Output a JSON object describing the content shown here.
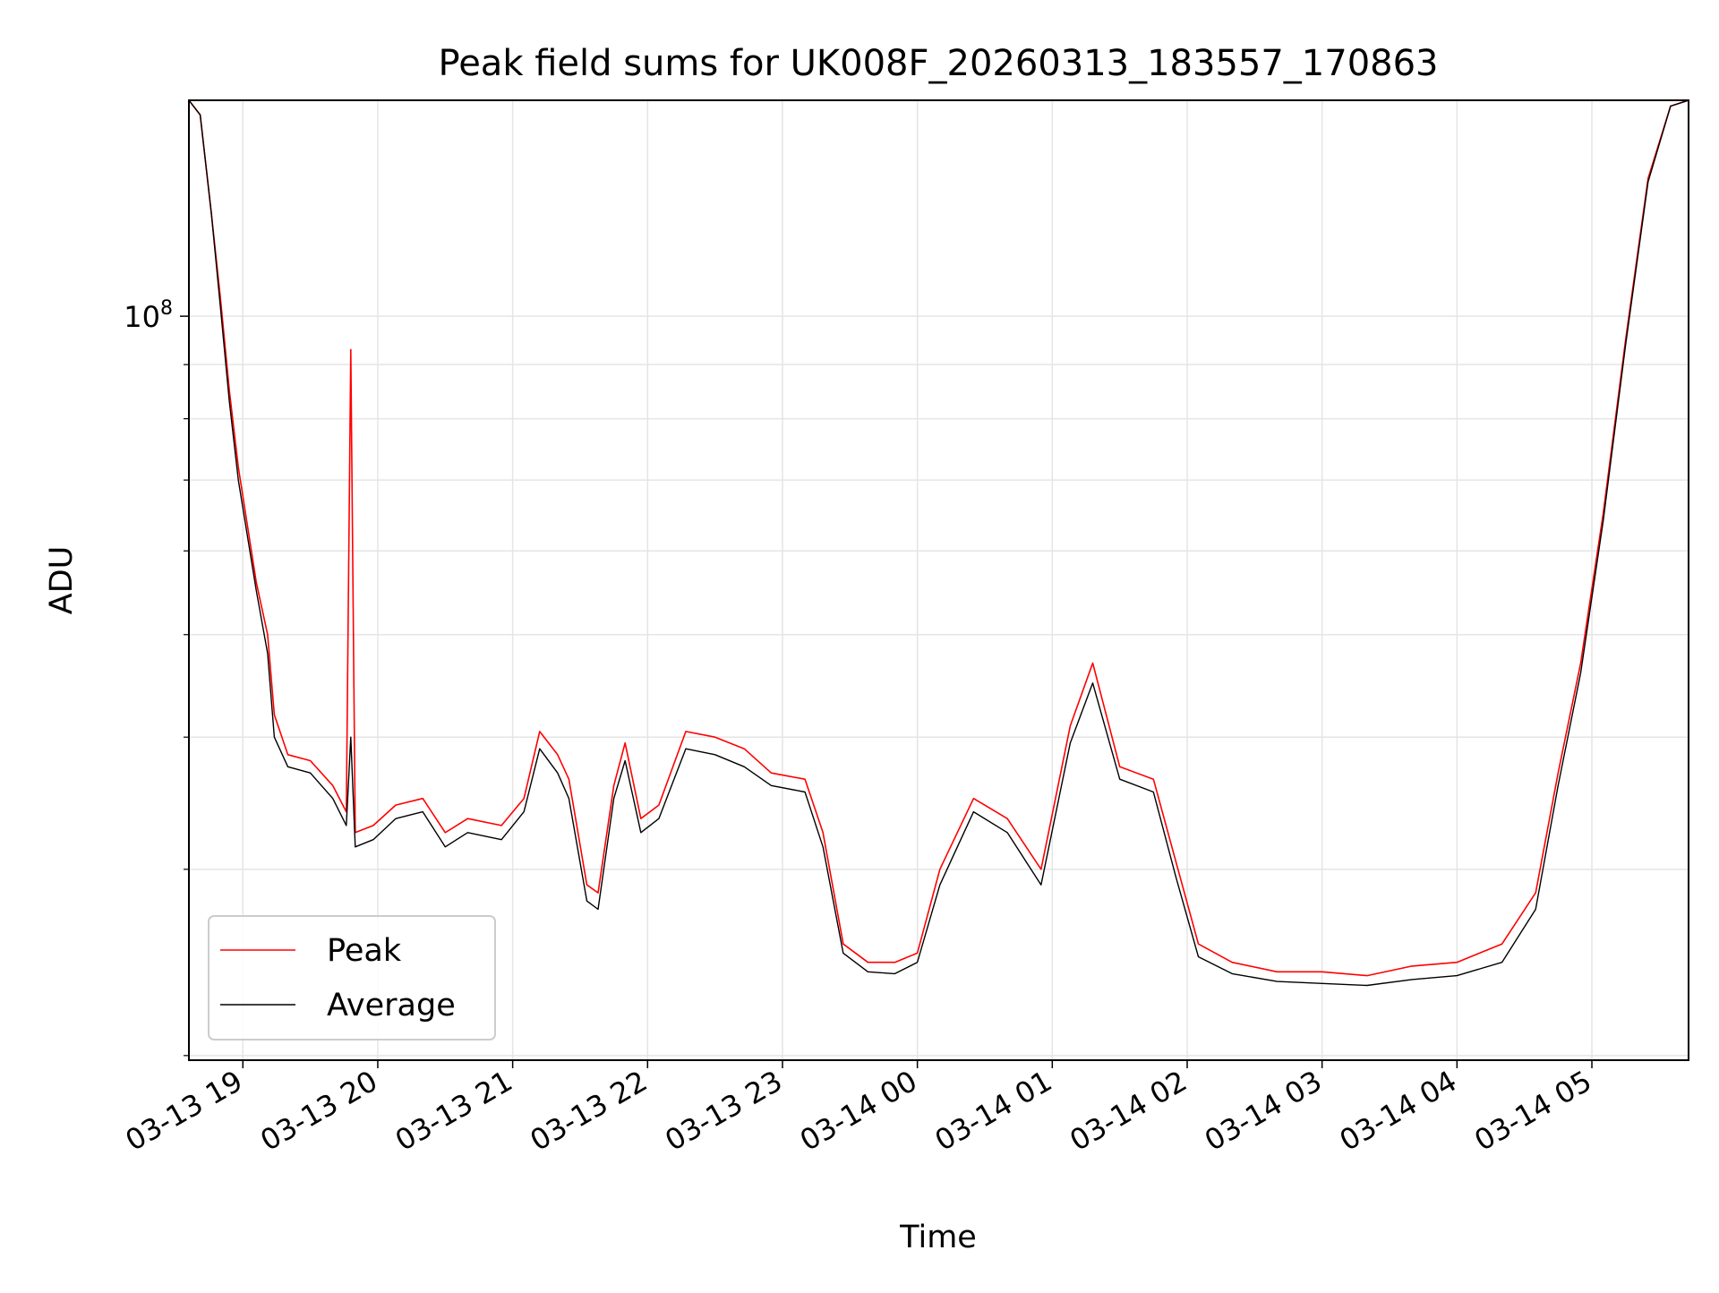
{
  "chart_data": {
    "type": "line",
    "title": "Peak field sums for UK008F_20260313_183557_170863",
    "xlabel": "Time",
    "ylabel": "ADU",
    "y_scale": "log",
    "ylim": [
      19800000,
      160000000
    ],
    "xlim": [
      "2026-03-13 18:36",
      "2026-03-14 05:43"
    ],
    "grid": true,
    "legend_position": "lower-left",
    "x_tick_labels": [
      "03-13 19",
      "03-13 20",
      "03-13 21",
      "03-13 22",
      "03-13 23",
      "03-14 00",
      "03-14 01",
      "03-14 02",
      "03-14 03",
      "03-14 04",
      "03-14 05"
    ],
    "y_tick_labels": [
      {
        "base": "10",
        "exp": "8"
      }
    ],
    "series": [
      {
        "name": "Peak",
        "color": "#ff0000",
        "points": [
          [
            "2026-03-13 18:36",
            160000000
          ],
          [
            "2026-03-13 18:41",
            155000000
          ],
          [
            "2026-03-13 18:46",
            125000000
          ],
          [
            "2026-03-13 18:50",
            104000000
          ],
          [
            "2026-03-13 18:54",
            85000000
          ],
          [
            "2026-03-13 18:58",
            72000000
          ],
          [
            "2026-03-13 19:06",
            56000000
          ],
          [
            "2026-03-13 19:11",
            50000000
          ],
          [
            "2026-03-13 19:14",
            42000000
          ],
          [
            "2026-03-13 19:20",
            38500000
          ],
          [
            "2026-03-13 19:30",
            38000000
          ],
          [
            "2026-03-13 19:40",
            36000000
          ],
          [
            "2026-03-13 19:46",
            34000000
          ],
          [
            "2026-03-13 19:48",
            93000000
          ],
          [
            "2026-03-13 19:50",
            32500000
          ],
          [
            "2026-03-13 19:58",
            33000000
          ],
          [
            "2026-03-13 20:08",
            34500000
          ],
          [
            "2026-03-13 20:20",
            35000000
          ],
          [
            "2026-03-13 20:30",
            32500000
          ],
          [
            "2026-03-13 20:40",
            33500000
          ],
          [
            "2026-03-13 20:55",
            33000000
          ],
          [
            "2026-03-13 21:05",
            35000000
          ],
          [
            "2026-03-13 21:12",
            40500000
          ],
          [
            "2026-03-13 21:20",
            38500000
          ],
          [
            "2026-03-13 21:25",
            36500000
          ],
          [
            "2026-03-13 21:33",
            29000000
          ],
          [
            "2026-03-13 21:38",
            28500000
          ],
          [
            "2026-03-13 21:45",
            36000000
          ],
          [
            "2026-03-13 21:50",
            39500000
          ],
          [
            "2026-03-13 21:57",
            33500000
          ],
          [
            "2026-03-13 22:05",
            34500000
          ],
          [
            "2026-03-13 22:17",
            40500000
          ],
          [
            "2026-03-13 22:30",
            40000000
          ],
          [
            "2026-03-13 22:43",
            39000000
          ],
          [
            "2026-03-13 22:55",
            37000000
          ],
          [
            "2026-03-13 23:10",
            36500000
          ],
          [
            "2026-03-13 23:18",
            32500000
          ],
          [
            "2026-03-13 23:27",
            25500000
          ],
          [
            "2026-03-13 23:38",
            24500000
          ],
          [
            "2026-03-13 23:50",
            24500000
          ],
          [
            "2026-03-14 00:00",
            25000000
          ],
          [
            "2026-03-14 00:10",
            30000000
          ],
          [
            "2026-03-14 00:25",
            35000000
          ],
          [
            "2026-03-14 00:40",
            33500000
          ],
          [
            "2026-03-14 00:55",
            30000000
          ],
          [
            "2026-03-14 01:08",
            41000000
          ],
          [
            "2026-03-14 01:18",
            47000000
          ],
          [
            "2026-03-14 01:30",
            37500000
          ],
          [
            "2026-03-14 01:45",
            36500000
          ],
          [
            "2026-03-14 01:55",
            30500000
          ],
          [
            "2026-03-14 02:05",
            25500000
          ],
          [
            "2026-03-14 02:20",
            24500000
          ],
          [
            "2026-03-14 02:40",
            24000000
          ],
          [
            "2026-03-14 03:00",
            24000000
          ],
          [
            "2026-03-14 03:20",
            23800000
          ],
          [
            "2026-03-14 03:40",
            24300000
          ],
          [
            "2026-03-14 04:00",
            24500000
          ],
          [
            "2026-03-14 04:20",
            25500000
          ],
          [
            "2026-03-14 04:35",
            28500000
          ],
          [
            "2026-03-14 04:45",
            37000000
          ],
          [
            "2026-03-14 04:55",
            47000000
          ],
          [
            "2026-03-14 05:05",
            65000000
          ],
          [
            "2026-03-14 05:15",
            95000000
          ],
          [
            "2026-03-14 05:25",
            135000000
          ],
          [
            "2026-03-14 05:35",
            158000000
          ],
          [
            "2026-03-14 05:43",
            160000000
          ]
        ]
      },
      {
        "name": "Average",
        "color": "#000000",
        "points": [
          [
            "2026-03-13 18:36",
            160000000
          ],
          [
            "2026-03-13 18:41",
            155000000
          ],
          [
            "2026-03-13 18:46",
            125000000
          ],
          [
            "2026-03-13 18:50",
            102000000
          ],
          [
            "2026-03-13 18:54",
            83000000
          ],
          [
            "2026-03-13 18:58",
            70000000
          ],
          [
            "2026-03-13 19:06",
            55000000
          ],
          [
            "2026-03-13 19:11",
            48000000
          ],
          [
            "2026-03-13 19:14",
            40000000
          ],
          [
            "2026-03-13 19:20",
            37500000
          ],
          [
            "2026-03-13 19:30",
            37000000
          ],
          [
            "2026-03-13 19:40",
            35000000
          ],
          [
            "2026-03-13 19:46",
            33000000
          ],
          [
            "2026-03-13 19:48",
            40000000
          ],
          [
            "2026-03-13 19:50",
            31500000
          ],
          [
            "2026-03-13 19:58",
            32000000
          ],
          [
            "2026-03-13 20:08",
            33500000
          ],
          [
            "2026-03-13 20:20",
            34000000
          ],
          [
            "2026-03-13 20:30",
            31500000
          ],
          [
            "2026-03-13 20:40",
            32500000
          ],
          [
            "2026-03-13 20:55",
            32000000
          ],
          [
            "2026-03-13 21:05",
            34000000
          ],
          [
            "2026-03-13 21:12",
            39000000
          ],
          [
            "2026-03-13 21:20",
            37000000
          ],
          [
            "2026-03-13 21:25",
            35000000
          ],
          [
            "2026-03-13 21:33",
            28000000
          ],
          [
            "2026-03-13 21:38",
            27500000
          ],
          [
            "2026-03-13 21:45",
            35000000
          ],
          [
            "2026-03-13 21:50",
            38000000
          ],
          [
            "2026-03-13 21:57",
            32500000
          ],
          [
            "2026-03-13 22:05",
            33500000
          ],
          [
            "2026-03-13 22:17",
            39000000
          ],
          [
            "2026-03-13 22:30",
            38500000
          ],
          [
            "2026-03-13 22:43",
            37500000
          ],
          [
            "2026-03-13 22:55",
            36000000
          ],
          [
            "2026-03-13 23:10",
            35500000
          ],
          [
            "2026-03-13 23:18",
            31500000
          ],
          [
            "2026-03-13 23:27",
            25000000
          ],
          [
            "2026-03-13 23:38",
            24000000
          ],
          [
            "2026-03-13 23:50",
            23900000
          ],
          [
            "2026-03-14 00:00",
            24500000
          ],
          [
            "2026-03-14 00:10",
            29000000
          ],
          [
            "2026-03-14 00:25",
            34000000
          ],
          [
            "2026-03-14 00:40",
            32500000
          ],
          [
            "2026-03-14 00:55",
            29000000
          ],
          [
            "2026-03-14 01:08",
            39500000
          ],
          [
            "2026-03-14 01:18",
            45000000
          ],
          [
            "2026-03-14 01:30",
            36500000
          ],
          [
            "2026-03-14 01:45",
            35500000
          ],
          [
            "2026-03-14 01:55",
            29500000
          ],
          [
            "2026-03-14 02:05",
            24800000
          ],
          [
            "2026-03-14 02:20",
            23900000
          ],
          [
            "2026-03-14 02:40",
            23500000
          ],
          [
            "2026-03-14 03:00",
            23400000
          ],
          [
            "2026-03-14 03:20",
            23300000
          ],
          [
            "2026-03-14 03:40",
            23600000
          ],
          [
            "2026-03-14 04:00",
            23800000
          ],
          [
            "2026-03-14 04:20",
            24500000
          ],
          [
            "2026-03-14 04:35",
            27500000
          ],
          [
            "2026-03-14 04:45",
            36000000
          ],
          [
            "2026-03-14 04:55",
            46000000
          ],
          [
            "2026-03-14 05:05",
            64000000
          ],
          [
            "2026-03-14 05:15",
            94000000
          ],
          [
            "2026-03-14 05:25",
            134000000
          ],
          [
            "2026-03-14 05:35",
            158000000
          ],
          [
            "2026-03-14 05:43",
            160000000
          ]
        ]
      }
    ]
  }
}
